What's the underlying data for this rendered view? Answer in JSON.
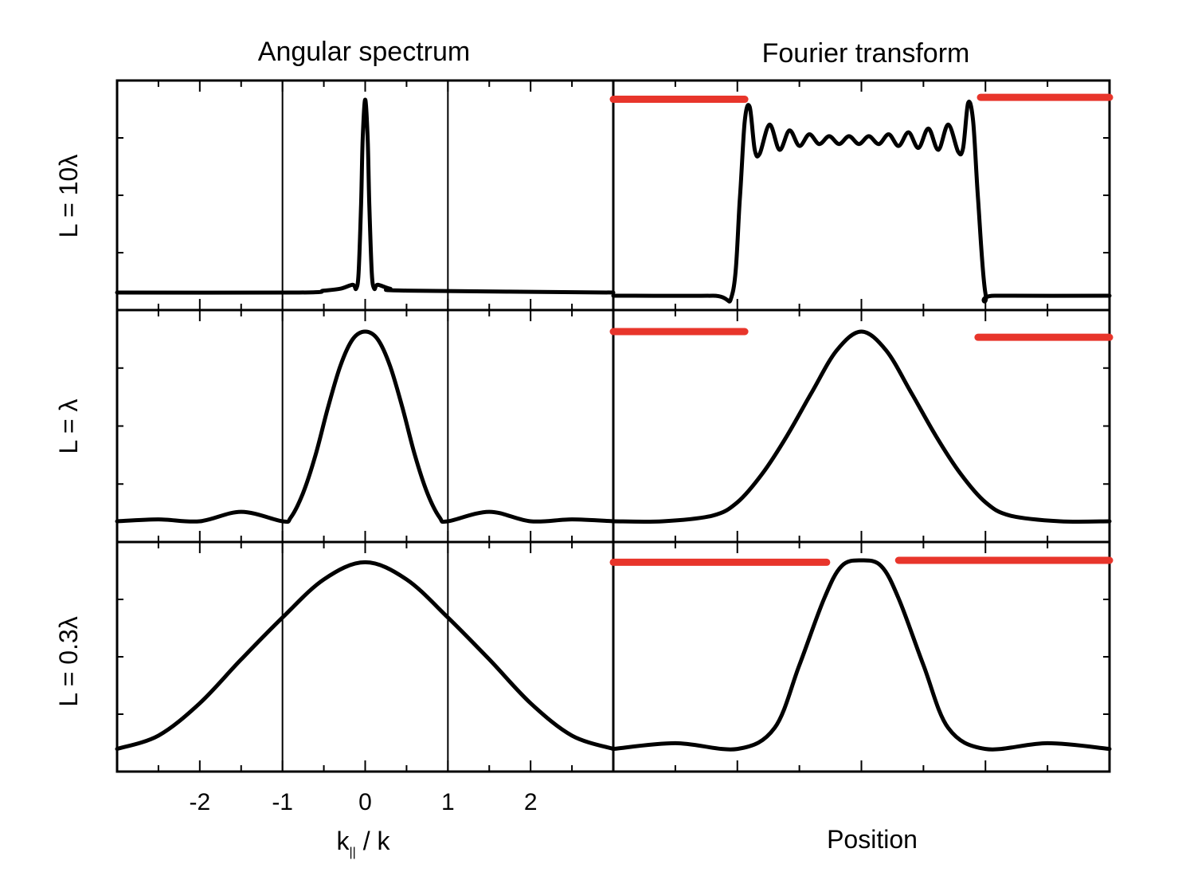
{
  "figure": {
    "col_titles": [
      "Angular spectrum",
      "Fourier transform"
    ],
    "row_labels": [
      "L = 10λ",
      "L = λ",
      "L = 0.3λ"
    ],
    "xlabel_left_main": "k",
    "xlabel_left_sub": "||",
    "xlabel_left_rest": " / k",
    "xlabel_right": "Position",
    "colors": {
      "curve": "#000000",
      "bars": "#e8352b",
      "frame": "#000000"
    }
  },
  "chart_data": [
    {
      "type": "line",
      "panel": "angular-spectrum-L10",
      "xlim": [
        -3,
        3
      ],
      "ylim": [
        0,
        1
      ],
      "reference_lines_x": [
        -1,
        1
      ],
      "series": [
        {
          "x": [
            -3.0,
            -0.8,
            -0.5,
            -0.3,
            -0.15,
            -0.11,
            -0.08,
            -0.05,
            -0.03,
            0.0,
            0.03,
            0.05,
            0.08,
            0.11,
            0.15,
            0.3,
            0.5,
            3.0
          ],
          "y": [
            0.0,
            0.0,
            0.01,
            0.02,
            0.04,
            0.02,
            0.1,
            0.45,
            0.8,
            1.0,
            0.8,
            0.45,
            0.1,
            0.02,
            0.04,
            0.02,
            0.01,
            0.0
          ]
        }
      ]
    },
    {
      "type": "line",
      "panel": "fourier-transform-L10",
      "xlim": [
        -1,
        1
      ],
      "ylim": [
        0,
        1
      ],
      "series": [
        {
          "x": [
            -1.0,
            -0.6,
            -0.52,
            -0.49,
            -0.47,
            -0.45,
            -0.43,
            -0.41,
            -0.37,
            -0.33,
            -0.29,
            -0.25,
            -0.21,
            -0.17,
            -0.13,
            -0.09,
            -0.05,
            -0.01,
            0.03,
            0.07,
            0.11,
            0.15,
            0.19,
            0.23,
            0.27,
            0.31,
            0.35,
            0.39,
            0.41,
            0.43,
            0.45,
            0.47,
            0.5,
            0.54,
            1.0
          ],
          "y": [
            0.0,
            0.0,
            0.01,
            0.5,
            0.9,
            0.97,
            0.75,
            0.73,
            0.88,
            0.75,
            0.85,
            0.77,
            0.83,
            0.78,
            0.82,
            0.78,
            0.82,
            0.78,
            0.82,
            0.78,
            0.83,
            0.77,
            0.84,
            0.76,
            0.86,
            0.75,
            0.88,
            0.74,
            0.76,
            0.99,
            0.9,
            0.5,
            0.01,
            0.0,
            0.0
          ]
        }
      ]
    },
    {
      "type": "line",
      "panel": "angular-spectrum-L1",
      "xlim": [
        -3,
        3
      ],
      "ylim": [
        0,
        1
      ],
      "reference_lines_x": [
        -1,
        1
      ],
      "series": [
        {
          "x": [
            -3.0,
            -2.5,
            -2.0,
            -1.5,
            -1.0,
            -0.9,
            -0.75,
            -0.6,
            -0.45,
            -0.3,
            -0.15,
            0.0,
            0.15,
            0.3,
            0.45,
            0.6,
            0.75,
            0.9,
            1.0,
            1.5,
            2.0,
            2.5,
            3.0
          ],
          "y": [
            0.0,
            0.01,
            0.0,
            0.05,
            0.0,
            0.02,
            0.15,
            0.35,
            0.6,
            0.82,
            0.96,
            1.0,
            0.96,
            0.82,
            0.6,
            0.35,
            0.15,
            0.02,
            0.0,
            0.05,
            0.0,
            0.01,
            0.0
          ]
        }
      ]
    },
    {
      "type": "line",
      "panel": "fourier-transform-L1",
      "xlim": [
        -1,
        1
      ],
      "ylim": [
        0,
        1
      ],
      "series": [
        {
          "x": [
            -1.0,
            -0.8,
            -0.6,
            -0.5,
            -0.4,
            -0.3,
            -0.2,
            -0.1,
            0.0,
            0.1,
            0.2,
            0.3,
            0.4,
            0.5,
            0.6,
            0.8,
            1.0
          ],
          "y": [
            0.0,
            0.0,
            0.03,
            0.1,
            0.25,
            0.45,
            0.68,
            0.9,
            1.0,
            0.9,
            0.68,
            0.45,
            0.25,
            0.1,
            0.03,
            0.0,
            0.0
          ]
        }
      ]
    },
    {
      "type": "line",
      "panel": "angular-spectrum-L03",
      "xlim": [
        -3,
        3
      ],
      "ylim": [
        0,
        1
      ],
      "reference_lines_x": [
        -1,
        1
      ],
      "series": [
        {
          "x": [
            -3.0,
            -2.5,
            -2.0,
            -1.5,
            -1.0,
            -0.5,
            0.0,
            0.5,
            1.0,
            1.5,
            2.0,
            2.5,
            3.0
          ],
          "y": [
            0.01,
            0.08,
            0.25,
            0.48,
            0.7,
            0.9,
            0.99,
            0.9,
            0.7,
            0.48,
            0.25,
            0.08,
            0.01
          ]
        }
      ]
    },
    {
      "type": "line",
      "panel": "fourier-transform-L03",
      "xlim": [
        -1,
        1
      ],
      "ylim": [
        0,
        1
      ],
      "series": [
        {
          "x": [
            -1.0,
            -0.75,
            -0.5,
            -0.35,
            -0.25,
            -0.15,
            -0.08,
            0.0,
            0.08,
            0.15,
            0.25,
            0.35,
            0.5,
            0.75,
            1.0
          ],
          "y": [
            0.01,
            0.04,
            0.01,
            0.12,
            0.45,
            0.8,
            0.97,
            1.0,
            0.97,
            0.8,
            0.45,
            0.12,
            0.01,
            0.04,
            0.01
          ]
        }
      ]
    }
  ],
  "bars": [
    {
      "panel": "fourier-transform-L10",
      "segments": [
        {
          "x": [
            -1.0,
            -0.47
          ],
          "y": 1.01
        },
        {
          "x": [
            0.48,
            1.0
          ],
          "y": 1.02
        }
      ]
    },
    {
      "panel": "fourier-transform-L1",
      "segments": [
        {
          "x": [
            -1.0,
            -0.47
          ],
          "y": 1.0
        },
        {
          "x": [
            0.47,
            1.0
          ],
          "y": 0.97
        }
      ]
    },
    {
      "panel": "fourier-transform-L03",
      "segments": [
        {
          "x": [
            -1.0,
            -0.14
          ],
          "y": 0.99
        },
        {
          "x": [
            0.15,
            1.0
          ],
          "y": 1.0
        }
      ]
    }
  ],
  "axis": {
    "left_tick_labels": [
      "-2",
      "-1",
      "0",
      "1",
      "2"
    ],
    "left_tick_values": [
      -2,
      -1,
      0,
      1,
      2
    ]
  }
}
